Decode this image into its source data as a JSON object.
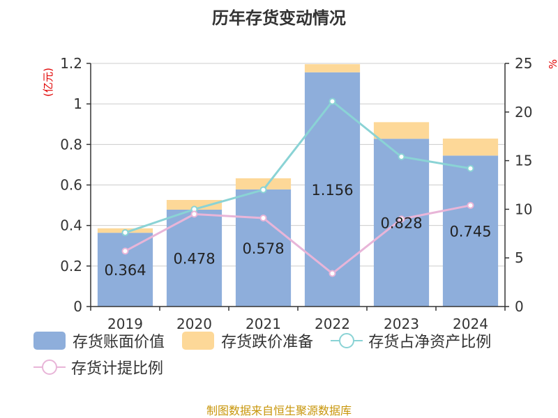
{
  "title": "历年存货变动情况",
  "source_note": "制图数据来自恒生聚源数据库",
  "chart_data": {
    "type": "bar",
    "categories": [
      "2019",
      "2020",
      "2021",
      "2022",
      "2023",
      "2024"
    ],
    "left_axis": {
      "unit": "(亿元)",
      "ticks": [
        "0",
        "0.2",
        "0.4",
        "0.6",
        "0.8",
        "1",
        "1.2"
      ],
      "range": [
        0,
        1.2
      ]
    },
    "right_axis": {
      "unit": "%",
      "ticks": [
        "0",
        "5",
        "10",
        "15",
        "20",
        "25"
      ],
      "range": [
        0,
        25
      ]
    },
    "series": [
      {
        "name": "存货账面价值",
        "kind": "bar",
        "axis": "left",
        "color": "#8eaedb",
        "values": [
          0.364,
          0.478,
          0.578,
          1.156,
          0.828,
          0.745
        ],
        "labels": [
          "0.364",
          "0.478",
          "0.578",
          "1.156",
          "0.828",
          "0.745"
        ]
      },
      {
        "name": "存货跌价准备",
        "kind": "bar",
        "axis": "left",
        "color": "#fdd898",
        "values": [
          0.022,
          0.048,
          0.055,
          0.04,
          0.082,
          0.084
        ]
      },
      {
        "name": "存货占净资产比例",
        "kind": "line",
        "axis": "right",
        "color": "#8ad3d5",
        "values": [
          7.6,
          10.0,
          12.0,
          21.1,
          15.4,
          14.2
        ]
      },
      {
        "name": "存货计提比例",
        "kind": "line",
        "axis": "right",
        "color": "#e8b5d8",
        "values": [
          5.7,
          9.5,
          9.1,
          3.4,
          9.0,
          10.4
        ]
      }
    ],
    "grid": true,
    "legend_position": "bottom"
  }
}
